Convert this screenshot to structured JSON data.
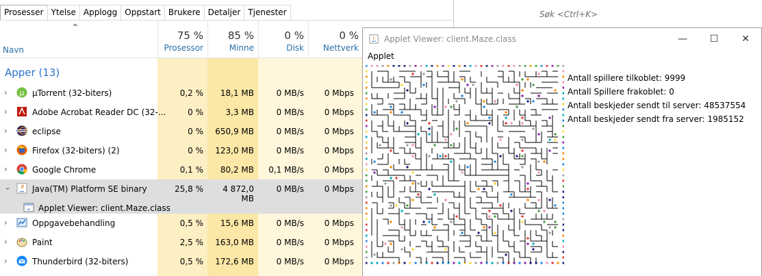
{
  "task_manager": {
    "tabs": [
      "Prosesser",
      "Ytelse",
      "Applogg",
      "Oppstart",
      "Brukere",
      "Detaljer",
      "Tjenester"
    ],
    "active_tab": 0,
    "columns": {
      "name_label": "Navn",
      "cpu": {
        "pct": "75 %",
        "label": "Prosessor"
      },
      "mem": {
        "pct": "85 %",
        "label": "Minne"
      },
      "disk": {
        "pct": "0 %",
        "label": "Disk"
      },
      "net": {
        "pct": "0 %",
        "label": "Nettverk"
      }
    },
    "group_label": "Apper (13)",
    "rows": [
      {
        "icon": "utorrent-icon",
        "name": "µTorrent (32-biters)",
        "cpu": "0,2 %",
        "mem": "18,1 MB",
        "disk": "0 MB/s",
        "net": "0 Mbps"
      },
      {
        "icon": "acrobat-icon",
        "name": "Adobe Acrobat Reader DC (32-...",
        "cpu": "0 %",
        "mem": "3,3 MB",
        "disk": "0 MB/s",
        "net": "0 Mbps"
      },
      {
        "icon": "eclipse-icon",
        "name": "eclipse",
        "cpu": "0 %",
        "mem": "650,9 MB",
        "disk": "0 MB/s",
        "net": "0 Mbps"
      },
      {
        "icon": "firefox-icon",
        "name": "Firefox (32-biters) (2)",
        "cpu": "0 %",
        "mem": "123,0 MB",
        "disk": "0 MB/s",
        "net": "0 Mbps"
      },
      {
        "icon": "chrome-icon",
        "name": "Google Chrome",
        "cpu": "0,1 %",
        "mem": "80,2 MB",
        "disk": "0,1 MB/s",
        "net": "0 Mbps"
      },
      {
        "icon": "java-icon",
        "name": "Java(TM) Platform SE binary",
        "cpu": "25,8 %",
        "mem": "4 872,0 MB",
        "disk": "0 MB/s",
        "net": "0 Mbps",
        "expanded": true,
        "selected": true
      },
      {
        "icon": "applet-icon",
        "name": "Applet Viewer: client.Maze.class",
        "child": true
      },
      {
        "icon": "task-scheduler-icon",
        "name": "Oppgavebehandling",
        "cpu": "0,5 %",
        "mem": "15,6 MB",
        "disk": "0 MB/s",
        "net": "0 Mbps"
      },
      {
        "icon": "paint-icon",
        "name": "Paint",
        "cpu": "2,5 %",
        "mem": "163,0 MB",
        "disk": "0 MB/s",
        "net": "0 Mbps"
      },
      {
        "icon": "thunderbird-icon",
        "name": "Thunderbird (32-biters)",
        "cpu": "0,5 %",
        "mem": "172,6 MB",
        "disk": "0 MB/s",
        "net": "0 Mbps"
      }
    ]
  },
  "search": {
    "placeholder": "Søk <Ctrl+K>"
  },
  "applet_window": {
    "title": "Applet Viewer: client.Maze.class",
    "menu": "Applet",
    "stats": [
      "Antall spillere tilkoblet: 9999",
      "Antall Spillere frakoblet: 0",
      "Antall beskjeder sendt til server: 48537554",
      "Antall beskjeder sendt fra server: 1985152"
    ]
  },
  "colors": {
    "accent": "#2b73c9",
    "cpu_shade": "#fcefc4",
    "mem_shade": "#fbe7a6",
    "light_shade": "#fff6dc",
    "selected_row": "#dedede"
  }
}
